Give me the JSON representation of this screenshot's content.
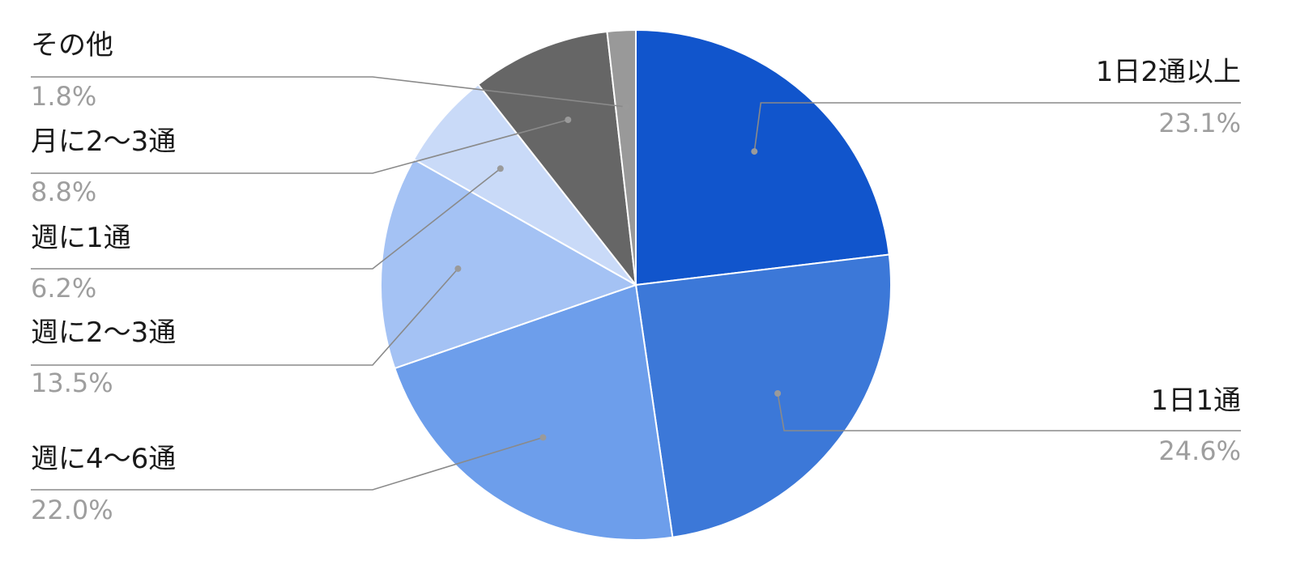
{
  "chart_data": {
    "type": "pie",
    "title": "",
    "categories": [
      "1日2通以上",
      "1日1通",
      "週に4〜6通",
      "週に2〜3通",
      "週に1通",
      "月に2〜3通",
      "その他"
    ],
    "values": [
      23.1,
      24.6,
      22.0,
      13.5,
      6.2,
      8.8,
      1.8
    ],
    "value_labels": [
      "23.1%",
      "24.6%",
      "22.0%",
      "13.5%",
      "6.2%",
      "8.8%",
      "1.8%"
    ],
    "colors": [
      "#1155cc",
      "#3c78d8",
      "#6d9eeb",
      "#a4c2f4",
      "#c9daf8",
      "#666666",
      "#999999"
    ],
    "legend": "none",
    "label_placement": "outside-with-leader-lines"
  }
}
